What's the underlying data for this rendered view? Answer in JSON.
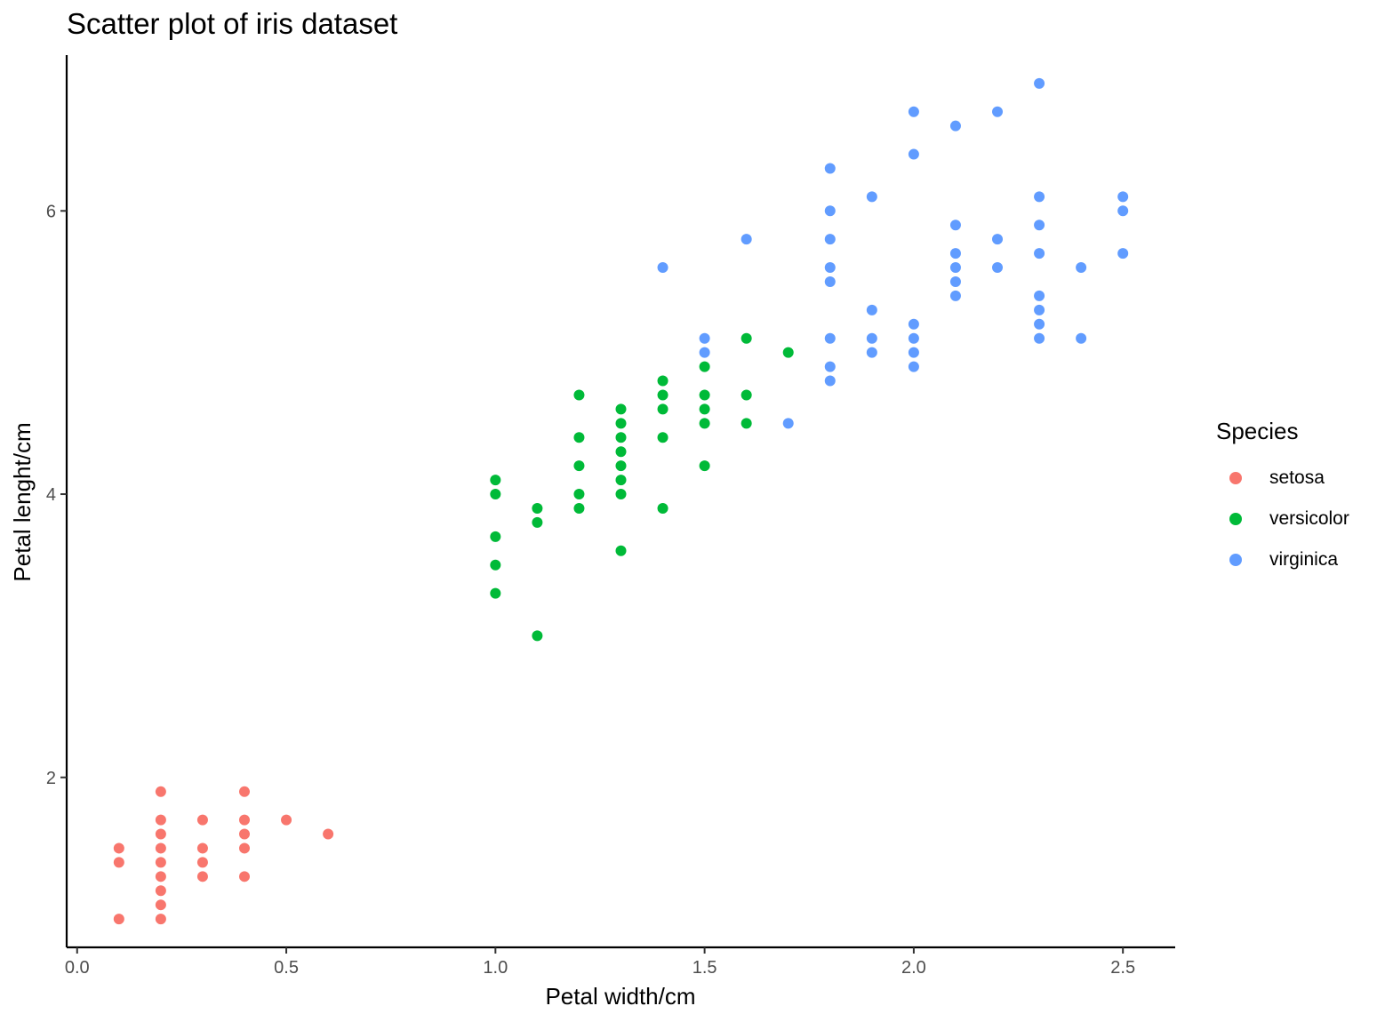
{
  "chart_data": {
    "type": "scatter",
    "title": "Scatter plot of iris dataset",
    "xlabel": "Petal width/cm",
    "ylabel": "Petal lenght/cm",
    "xlim": [
      -0.025,
      2.625
    ],
    "ylim": [
      0.8,
      7.1
    ],
    "x_ticks": [
      0.0,
      0.5,
      1.0,
      1.5,
      2.0,
      2.5
    ],
    "x_tick_labels": [
      "0.0",
      "0.5",
      "1.0",
      "1.5",
      "2.0",
      "2.5"
    ],
    "y_ticks": [
      2,
      4,
      6
    ],
    "y_tick_labels": [
      "2",
      "4",
      "6"
    ],
    "grid": false,
    "legend_position": "right",
    "legend_title": "Species",
    "series": [
      {
        "name": "setosa",
        "color": "#F8766D",
        "points": [
          [
            0.1,
            1.0
          ],
          [
            0.1,
            1.4
          ],
          [
            0.1,
            1.5
          ],
          [
            0.2,
            1.1
          ],
          [
            0.2,
            1.0
          ],
          [
            0.2,
            1.2
          ],
          [
            0.2,
            1.3
          ],
          [
            0.2,
            1.4
          ],
          [
            0.2,
            1.5
          ],
          [
            0.2,
            1.6
          ],
          [
            0.2,
            1.7
          ],
          [
            0.2,
            1.9
          ],
          [
            0.3,
            1.3
          ],
          [
            0.3,
            1.4
          ],
          [
            0.3,
            1.5
          ],
          [
            0.3,
            1.7
          ],
          [
            0.4,
            1.3
          ],
          [
            0.4,
            1.5
          ],
          [
            0.4,
            1.6
          ],
          [
            0.4,
            1.7
          ],
          [
            0.4,
            1.9
          ],
          [
            0.5,
            1.7
          ],
          [
            0.6,
            1.6
          ]
        ]
      },
      {
        "name": "versicolor",
        "color": "#00BA38",
        "points": [
          [
            1.0,
            3.3
          ],
          [
            1.0,
            3.5
          ],
          [
            1.0,
            3.7
          ],
          [
            1.0,
            4.0
          ],
          [
            1.0,
            4.1
          ],
          [
            1.1,
            3.0
          ],
          [
            1.1,
            3.8
          ],
          [
            1.1,
            3.9
          ],
          [
            1.2,
            3.9
          ],
          [
            1.2,
            4.0
          ],
          [
            1.2,
            4.2
          ],
          [
            1.2,
            4.4
          ],
          [
            1.2,
            4.7
          ],
          [
            1.3,
            3.6
          ],
          [
            1.3,
            4.0
          ],
          [
            1.3,
            4.1
          ],
          [
            1.3,
            4.2
          ],
          [
            1.3,
            4.3
          ],
          [
            1.3,
            4.4
          ],
          [
            1.3,
            4.5
          ],
          [
            1.3,
            4.6
          ],
          [
            1.4,
            3.9
          ],
          [
            1.4,
            4.4
          ],
          [
            1.4,
            4.6
          ],
          [
            1.4,
            4.7
          ],
          [
            1.4,
            4.8
          ],
          [
            1.5,
            4.2
          ],
          [
            1.5,
            4.5
          ],
          [
            1.5,
            4.6
          ],
          [
            1.5,
            4.7
          ],
          [
            1.5,
            4.9
          ],
          [
            1.6,
            4.5
          ],
          [
            1.6,
            4.7
          ],
          [
            1.6,
            5.1
          ],
          [
            1.7,
            5.0
          ]
        ]
      },
      {
        "name": "virginica",
        "color": "#619CFF",
        "points": [
          [
            1.4,
            5.6
          ],
          [
            1.5,
            5.0
          ],
          [
            1.5,
            5.1
          ],
          [
            1.6,
            5.8
          ],
          [
            1.7,
            4.5
          ],
          [
            1.8,
            4.8
          ],
          [
            1.8,
            4.9
          ],
          [
            1.8,
            5.1
          ],
          [
            1.8,
            5.5
          ],
          [
            1.8,
            5.6
          ],
          [
            1.8,
            5.8
          ],
          [
            1.8,
            6.0
          ],
          [
            1.8,
            6.3
          ],
          [
            1.9,
            5.0
          ],
          [
            1.9,
            5.1
          ],
          [
            1.9,
            5.3
          ],
          [
            1.9,
            6.1
          ],
          [
            2.0,
            4.9
          ],
          [
            2.0,
            5.0
          ],
          [
            2.0,
            5.1
          ],
          [
            2.0,
            5.2
          ],
          [
            2.0,
            6.4
          ],
          [
            2.0,
            6.7
          ],
          [
            2.1,
            5.4
          ],
          [
            2.1,
            5.5
          ],
          [
            2.1,
            5.6
          ],
          [
            2.1,
            5.7
          ],
          [
            2.1,
            5.9
          ],
          [
            2.1,
            6.6
          ],
          [
            2.2,
            5.6
          ],
          [
            2.2,
            5.8
          ],
          [
            2.2,
            6.7
          ],
          [
            2.3,
            5.1
          ],
          [
            2.3,
            5.2
          ],
          [
            2.3,
            5.3
          ],
          [
            2.3,
            5.4
          ],
          [
            2.3,
            5.7
          ],
          [
            2.3,
            5.9
          ],
          [
            2.3,
            6.1
          ],
          [
            2.3,
            6.9
          ],
          [
            2.4,
            5.1
          ],
          [
            2.4,
            5.6
          ],
          [
            2.5,
            5.7
          ],
          [
            2.5,
            6.0
          ],
          [
            2.5,
            6.1
          ]
        ]
      }
    ]
  }
}
